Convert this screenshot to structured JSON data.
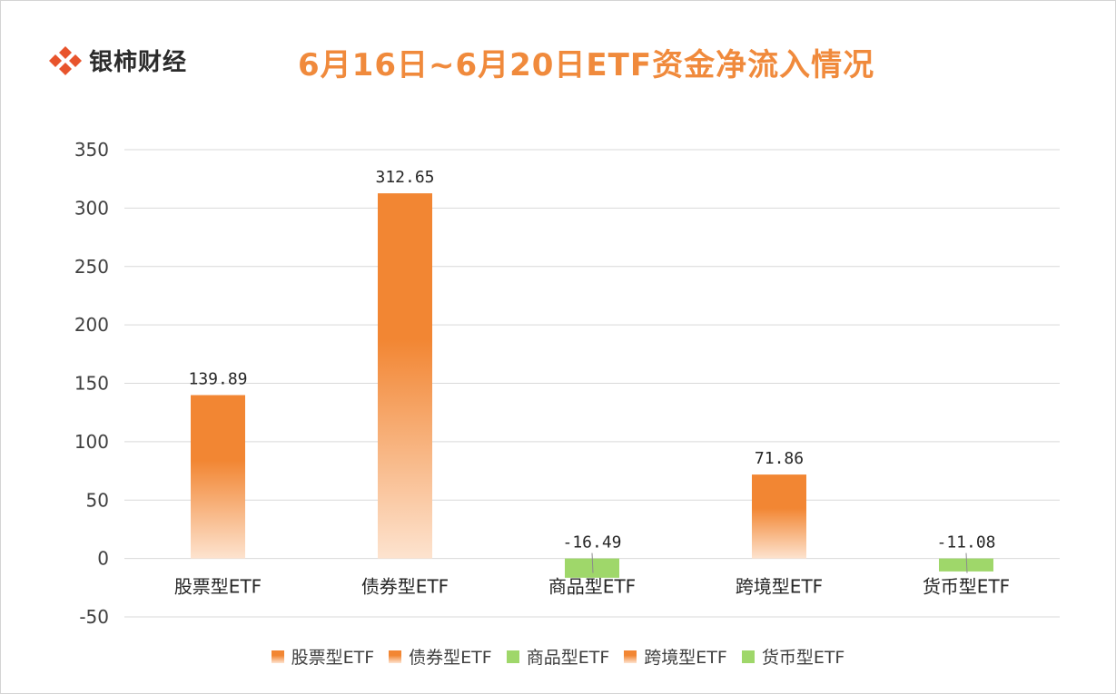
{
  "brand": {
    "name": "银柿财经"
  },
  "colors": {
    "positive_top": "#f28633",
    "positive_bottom": "#fde3cf",
    "negative": "#9fd76a",
    "grid": "#d9d9d9",
    "title": "#f08a3c"
  },
  "legend": [
    {
      "label": "股票型ETF",
      "color": "#f28633"
    },
    {
      "label": "债券型ETF",
      "color": "#f28633"
    },
    {
      "label": "商品型ETF",
      "color": "#9fd76a"
    },
    {
      "label": "跨境型ETF",
      "color": "#f28633"
    },
    {
      "label": "货币型ETF",
      "color": "#9fd76a"
    }
  ],
  "chart_data": {
    "type": "bar",
    "title": "6月16日~6月20日ETF资金净流入情况",
    "categories": [
      "股票型ETF",
      "债券型ETF",
      "商品型ETF",
      "跨境型ETF",
      "货币型ETF"
    ],
    "values": [
      139.89,
      312.65,
      -16.49,
      71.86,
      -11.08
    ],
    "value_labels": [
      "139.89",
      "312.65",
      "-16.49",
      "71.86",
      "-11.08"
    ],
    "ylim": [
      -50,
      350
    ],
    "yticks": [
      "-50",
      "0",
      "50",
      "100",
      "150",
      "200",
      "250",
      "300",
      "350"
    ],
    "ytick_values": [
      -50,
      0,
      50,
      100,
      150,
      200,
      250,
      300,
      350
    ],
    "xlabel": "",
    "ylabel": "",
    "grid": true,
    "legend_position": "bottom"
  }
}
